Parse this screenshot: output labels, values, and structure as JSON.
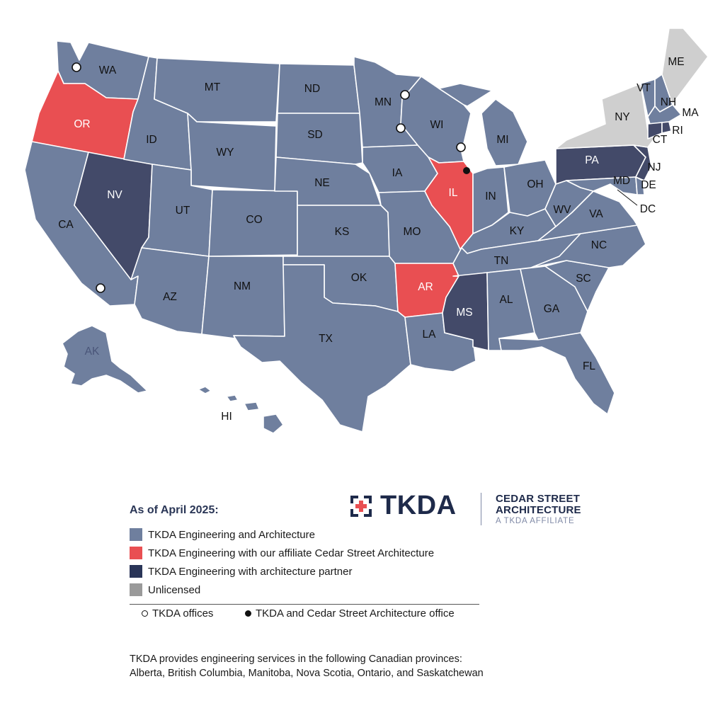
{
  "colors": {
    "engineering_architecture": "#6f7f9e",
    "affiliate": "#e94f52",
    "partner": "#434a69",
    "unlicensed": "#cfcfcf",
    "legend_unlicensed": "#9a9a9a",
    "partner_legend": "#2a3558",
    "brand_red": "#e94f52",
    "brand_navy": "#1e2a4a"
  },
  "map": {
    "labels": {
      "WA": "WA",
      "OR": "OR",
      "CA": "CA",
      "NV": "NV",
      "ID": "ID",
      "MT": "MT",
      "WY": "WY",
      "UT": "UT",
      "AZ": "AZ",
      "CO": "CO",
      "NM": "NM",
      "ND": "ND",
      "SD": "SD",
      "NE": "NE",
      "KS": "KS",
      "OK": "OK",
      "TX": "TX",
      "MN": "MN",
      "IA": "IA",
      "MO": "MO",
      "AR": "AR",
      "LA": "LA",
      "WI": "WI",
      "IL": "IL",
      "MI": "MI",
      "IN": "IN",
      "OH": "OH",
      "KY": "KY",
      "TN": "TN",
      "MS": "MS",
      "AL": "AL",
      "GA": "GA",
      "FL": "FL",
      "SC": "SC",
      "NC": "NC",
      "VA": "VA",
      "WV": "WV",
      "PA": "PA",
      "NY": "NY",
      "VT": "VT",
      "NH": "NH",
      "ME": "ME",
      "MA": "MA",
      "RI": "RI",
      "CT": "CT",
      "NJ": "NJ",
      "DE": "DE",
      "MD": "MD",
      "DC": "DC",
      "AK": "AK",
      "HI": "HI"
    }
  },
  "legend": {
    "title": "As of April 2025:",
    "items": [
      "TKDA Engineering and Architecture",
      "TKDA Engineering with our affiliate Cedar Street Architecture",
      "TKDA Engineering with architecture partner",
      "Unlicensed"
    ],
    "offices": "TKDA offices",
    "combined_office": "TKDA and Cedar Street Architecture office"
  },
  "brand": {
    "tkda": "TKDA",
    "cedar_line1": "CEDAR STREET",
    "cedar_line2": "ARCHITECTURE",
    "cedar_line3": "A TKDA AFFILIATE"
  },
  "note": {
    "line1": "TKDA provides engineering services in the following Canadian provinces:",
    "line2": "Alberta, British Columbia, Manitoba, Nova Scotia, Ontario, and Saskatchewan"
  },
  "icons": {
    "office": "open-circle-icon",
    "combined_office": "filled-circle-icon",
    "logo": "tkda-bracket-cross-logo"
  }
}
